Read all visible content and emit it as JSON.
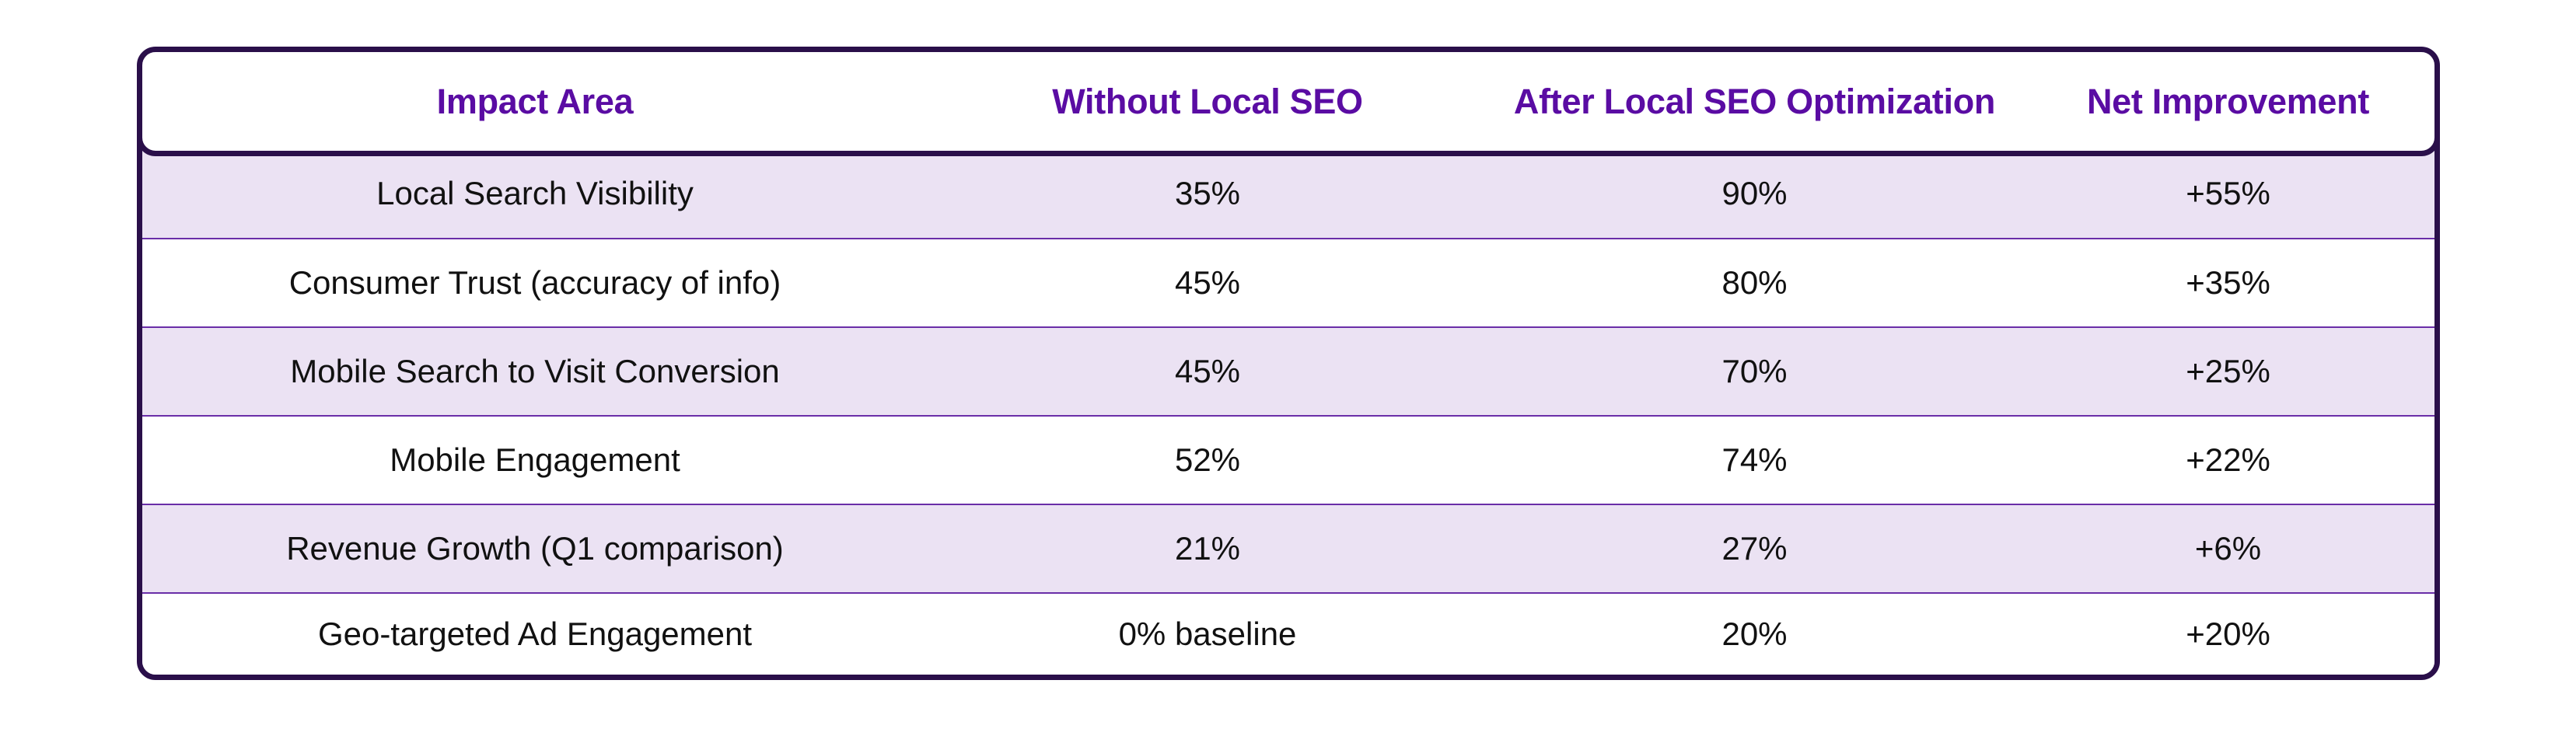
{
  "table": {
    "headers": [
      "Impact Area",
      "Without Local SEO",
      "After Local SEO Optimization",
      "Net Improvement"
    ],
    "rows": [
      [
        "Local Search Visibility",
        "35%",
        "90%",
        "+55%"
      ],
      [
        "Consumer Trust (accuracy of info)",
        "45%",
        "80%",
        "+35%"
      ],
      [
        "Mobile Search to Visit Conversion",
        "45%",
        "70%",
        "+25%"
      ],
      [
        "Mobile Engagement",
        "52%",
        "74%",
        "+22%"
      ],
      [
        "Revenue Growth (Q1 comparison)",
        "21%",
        "27%",
        "+6%"
      ],
      [
        "Geo-targeted Ad Engagement",
        "0% baseline",
        "20%",
        "+20%"
      ]
    ]
  },
  "colors": {
    "border": "#2a0f4a",
    "header_text": "#5a0ca3",
    "row_shade": "#ebe2f3",
    "row_divider": "#6a2ea8"
  }
}
